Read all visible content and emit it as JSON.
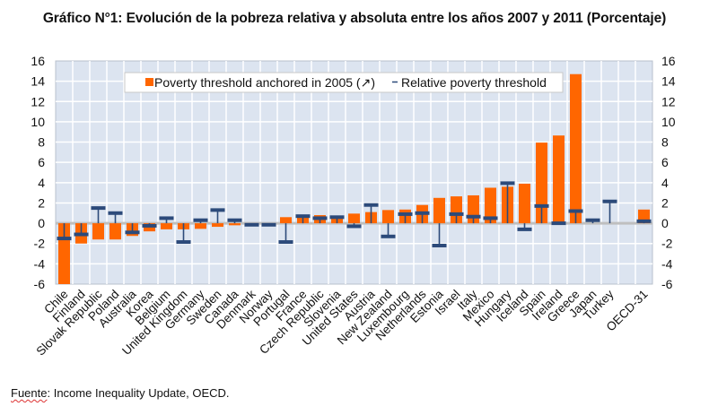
{
  "title": "Gráfico N°1: Evolución  de la pobreza  relativa y absoluta  entre los años 2007 y 2011 (Porcentaje)",
  "source": {
    "label": "Fuente",
    "text": ": Income Inequality Update, OECD."
  },
  "colors": {
    "bar": "#ff6600",
    "marker": "#2c4a7a",
    "plot_background": "#dce4f0",
    "grid": "#ffffff",
    "zero_line": "#bfbfbf"
  },
  "chart_data": {
    "type": "bar",
    "title": "Gráfico N°1: Evolución  de la pobreza  relativa y absoluta  entre los años 2007 y 2011 (Porcentaje)",
    "xlabel": "",
    "ylabel": "",
    "ylim": [
      -6,
      16
    ],
    "yticks": [
      16,
      14,
      12,
      10,
      8,
      6,
      4,
      2,
      0,
      -2,
      -4,
      -6
    ],
    "secondary_y_axis": true,
    "grid": true,
    "legend_position": "top-center",
    "categories": [
      "Chile",
      "Finland",
      "Slovak Republic",
      "Poland",
      "Australia",
      "Korea",
      "Belgium",
      "United Kingdom",
      "Germany",
      "Sweden",
      "Canada",
      "Denmark",
      "Norway",
      "Portugal",
      "France",
      "Czech Republic",
      "Slovenia",
      "United States",
      "Austria",
      "New Zealand",
      "Luxembourg",
      "Netherlands",
      "Estonia",
      "Israel",
      "Italy",
      "Mexico",
      "Hungary",
      "Iceland",
      "Spain",
      "Ireland",
      "Greece",
      "Japan",
      "Turkey",
      "",
      "OECD-31"
    ],
    "series": [
      {
        "name": "Poverty threshold anchored in 2005 (↗)",
        "kind": "bar",
        "values": [
          -6.0,
          -2.0,
          -1.6,
          -1.6,
          -1.25,
          -0.8,
          -0.6,
          -0.6,
          -0.55,
          -0.35,
          -0.2,
          0.0,
          0.0,
          0.6,
          0.65,
          0.8,
          0.75,
          0.95,
          1.1,
          1.3,
          1.35,
          1.8,
          2.5,
          2.65,
          2.75,
          3.5,
          3.6,
          3.9,
          7.95,
          8.65,
          14.7,
          null,
          null,
          null,
          1.35
        ]
      },
      {
        "name": "Relative poverty threshold",
        "kind": "marker",
        "values": [
          -1.5,
          -1.1,
          1.5,
          1.0,
          -0.9,
          -0.25,
          0.5,
          -1.85,
          0.3,
          1.3,
          0.3,
          -0.15,
          -0.15,
          -1.85,
          0.7,
          0.5,
          0.6,
          -0.3,
          1.8,
          -1.3,
          0.9,
          1.0,
          -2.2,
          0.9,
          0.65,
          0.5,
          3.95,
          -0.6,
          1.7,
          0.0,
          1.2,
          0.3,
          2.15,
          null,
          0.2
        ]
      }
    ]
  },
  "legend": {
    "items": [
      {
        "label": "Poverty threshold anchored in 2005 (↗)",
        "symbol": "square"
      },
      {
        "label": "Relative poverty threshold",
        "symbol": "dash"
      }
    ]
  }
}
